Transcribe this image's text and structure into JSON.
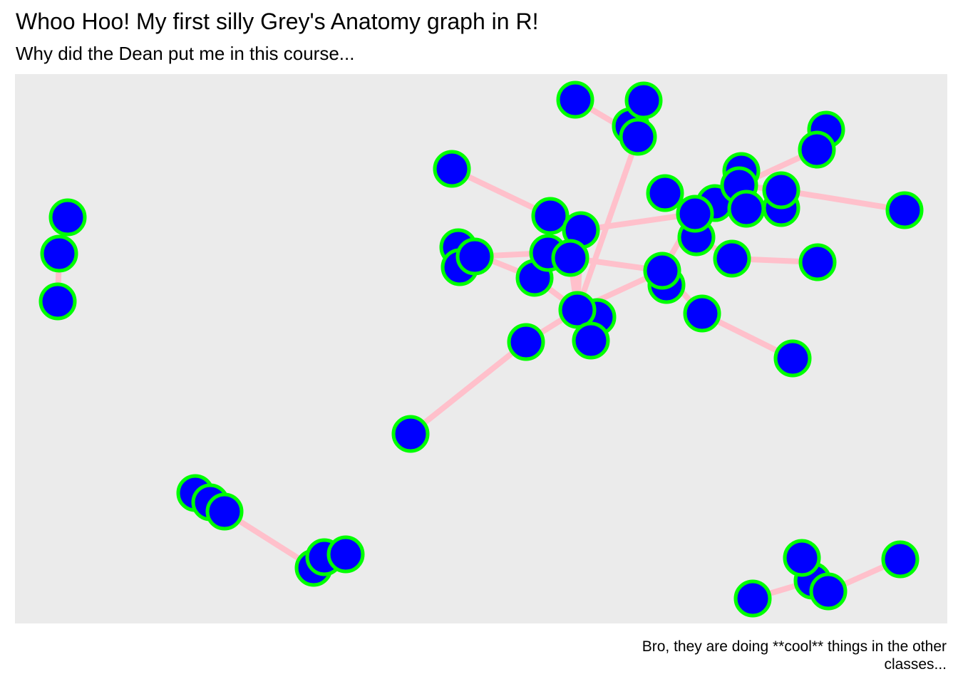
{
  "header": {
    "title": "Whoo Hoo! My first silly Grey's Anatomy graph in R!",
    "subtitle": "Why did the Dean put me in this course..."
  },
  "caption": "Bro, they are doing **cool** things in the other classes...",
  "style": {
    "panel_background": "#ebebeb",
    "edge_color": "#ffc0cb",
    "node_fill": "#0000ff",
    "node_stroke": "#00ff00"
  },
  "graph": {
    "layout": "network",
    "nodes": [
      "n1",
      "n2",
      "n3",
      "n4",
      "n5",
      "n6",
      "n7",
      "n8",
      "n9",
      "n10",
      "n11",
      "n12",
      "n13",
      "n14",
      "n15",
      "n16",
      "n17",
      "n18",
      "n19",
      "n20",
      "n21",
      "n22",
      "n23",
      "n24",
      "n25",
      "n26",
      "n27",
      "n28",
      "n29",
      "n30",
      "n31",
      "n32",
      "n33",
      "n34",
      "n35",
      "n36",
      "n37",
      "n38",
      "n39",
      "n40",
      "n41",
      "n42",
      "n43",
      "n44",
      "n45",
      "n46",
      "n47",
      "n48",
      "n49",
      "n50",
      "n51",
      "n52"
    ],
    "edges": [
      [
        "n2",
        "n3"
      ],
      [
        "n3",
        "n4"
      ],
      [
        "n5",
        "n6"
      ],
      [
        "n6",
        "n7"
      ],
      [
        "n7",
        "n8"
      ],
      [
        "n8",
        "n9"
      ],
      [
        "n9",
        "n10"
      ],
      [
        "n11",
        "n12"
      ],
      [
        "n12",
        "n13"
      ],
      [
        "n13",
        "n14"
      ],
      [
        "n14",
        "n15"
      ],
      [
        "n16",
        "n17"
      ],
      [
        "n17",
        "n18"
      ],
      [
        "n18",
        "n22"
      ],
      [
        "n19",
        "n22"
      ],
      [
        "n20",
        "n22"
      ],
      [
        "n21",
        "n22"
      ],
      [
        "n22",
        "n23"
      ],
      [
        "n23",
        "n24"
      ],
      [
        "n24",
        "n25"
      ],
      [
        "n24",
        "n29"
      ],
      [
        "n26",
        "n22"
      ],
      [
        "n27",
        "n22"
      ],
      [
        "n28",
        "n23"
      ],
      [
        "n29",
        "n30"
      ],
      [
        "n29",
        "n31"
      ],
      [
        "n30",
        "n43"
      ],
      [
        "n31",
        "n32"
      ],
      [
        "n32",
        "n33"
      ],
      [
        "n33",
        "n34"
      ],
      [
        "n33",
        "n35"
      ],
      [
        "n35",
        "n36"
      ],
      [
        "n36",
        "n37"
      ],
      [
        "n37",
        "n38"
      ],
      [
        "n38",
        "n39"
      ],
      [
        "n39",
        "n40"
      ],
      [
        "n40",
        "n41"
      ],
      [
        "n41",
        "n42"
      ],
      [
        "n43",
        "n44"
      ],
      [
        "n44",
        "n45"
      ],
      [
        "n46",
        "n41"
      ],
      [
        "n47",
        "n48"
      ],
      [
        "n48",
        "n49"
      ],
      [
        "n49",
        "n41"
      ],
      [
        "n38",
        "n50"
      ],
      [
        "n51",
        "n41"
      ],
      [
        "n52",
        "n41"
      ]
    ]
  }
}
